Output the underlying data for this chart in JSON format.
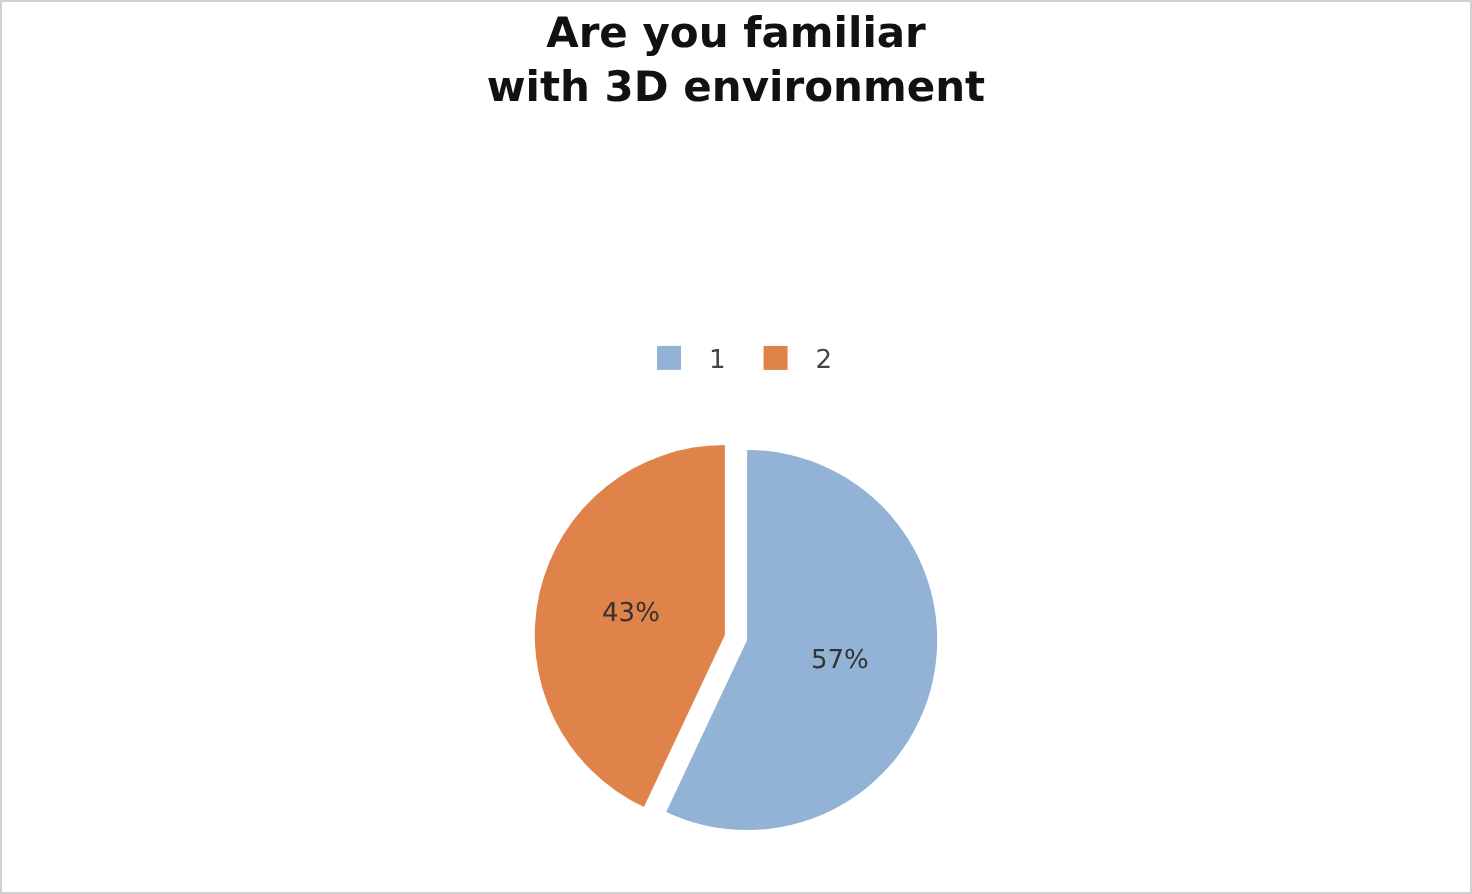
{
  "chart_data": {
    "type": "pie",
    "title": "Are you familiar with 3D environment",
    "categories": [
      "1",
      "2"
    ],
    "values": [
      57,
      43
    ],
    "colors": [
      "#93b3d6",
      "#e0834a"
    ],
    "value_labels": [
      "57%",
      "43%"
    ],
    "legend": "top"
  }
}
